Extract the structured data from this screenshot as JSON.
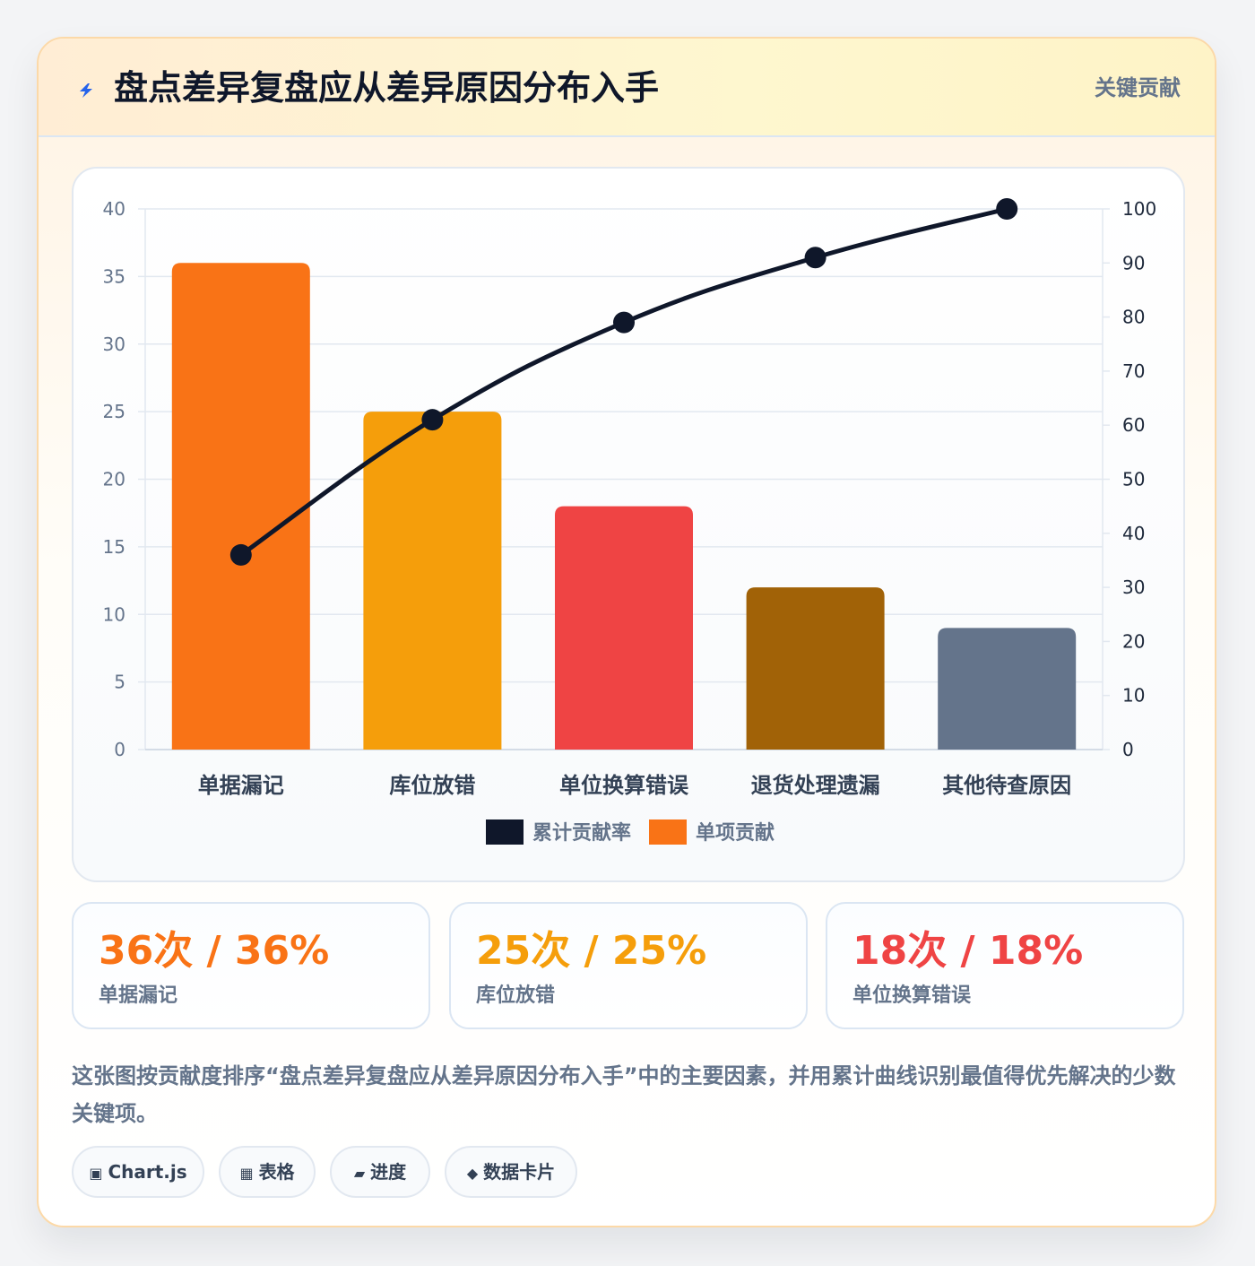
{
  "header": {
    "title": "盘点差异复盘应从差异原因分布入手",
    "badge": "关键贡献",
    "icon": "lightning-icon"
  },
  "chart_data": {
    "type": "bar",
    "categories": [
      "单据漏记",
      "库位放错",
      "单位换算错误",
      "退货处理遗漏",
      "其他待查原因"
    ],
    "series": [
      {
        "name": "单项贡献",
        "type": "bar",
        "axis": "left",
        "values": [
          36,
          25,
          18,
          12,
          9
        ],
        "colors": [
          "#f97316",
          "#f59e0b",
          "#ef4444",
          "#a16207",
          "#64748b"
        ]
      },
      {
        "name": "累计贡献率",
        "type": "line",
        "axis": "right",
        "values": [
          36,
          61,
          79,
          91,
          100
        ],
        "color": "#0f172a"
      }
    ],
    "y_left": {
      "min": 0,
      "max": 40,
      "ticks": [
        0,
        5,
        10,
        15,
        20,
        25,
        30,
        35,
        40
      ]
    },
    "y_right": {
      "min": 0,
      "max": 100,
      "ticks": [
        0,
        10,
        20,
        30,
        40,
        50,
        60,
        70,
        80,
        90,
        100
      ]
    },
    "legend": [
      {
        "label": "累计贡献率",
        "color": "#0f172a"
      },
      {
        "label": "单项贡献",
        "color": "#f97316"
      }
    ],
    "legend_position": "bottom",
    "grid": true
  },
  "stats": [
    {
      "value": "36次 / 36%",
      "label": "单据漏记",
      "color": "#f97316"
    },
    {
      "value": "25次 / 25%",
      "label": "库位放错",
      "color": "#f59e0b"
    },
    {
      "value": "18次 / 18%",
      "label": "单位换算错误",
      "color": "#ef4444"
    }
  ],
  "description": "这张图按贡献度排序“盘点差异复盘应从差异原因分布入手”中的主要因素，并用累计曲线识别最值得优先解决的少数关键项。",
  "chips": [
    {
      "icon": "▣",
      "icon_name": "chart-icon",
      "label": "Chart.js"
    },
    {
      "icon": "▦",
      "icon_name": "table-icon",
      "label": "表格"
    },
    {
      "icon": "▰",
      "icon_name": "progress-icon",
      "label": "进度"
    },
    {
      "icon": "◆",
      "icon_name": "card-icon",
      "label": "数据卡片"
    }
  ]
}
